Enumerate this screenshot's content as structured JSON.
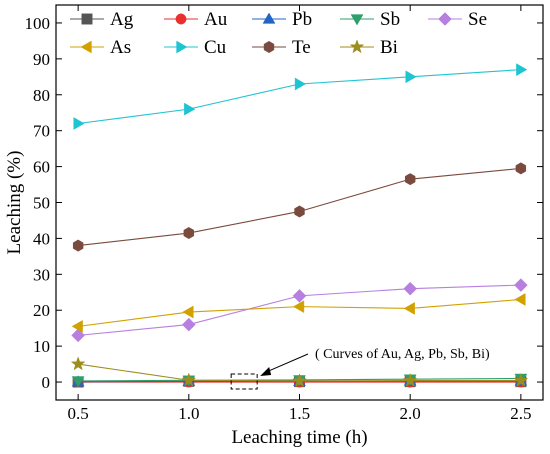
{
  "chart_data": {
    "type": "line",
    "xlabel": "Leaching time (h)",
    "ylabel": "Leaching (%)",
    "xlim": [
      0.4,
      2.6
    ],
    "ylim": [
      -5,
      105
    ],
    "xticks": [
      "0.5",
      "1.0",
      "1.5",
      "2.0",
      "2.5"
    ],
    "yticks": [
      "0",
      "10",
      "20",
      "30",
      "40",
      "50",
      "60",
      "70",
      "80",
      "90",
      "100"
    ],
    "x": [
      0.5,
      1.0,
      1.5,
      2.0,
      2.5
    ],
    "grid": false,
    "legend_position": "top",
    "series": [
      {
        "name": "Ag",
        "color": "#555555",
        "marker": "square",
        "values": [
          0,
          0.2,
          0.1,
          0.1,
          0.1
        ]
      },
      {
        "name": "Au",
        "color": "#e8302f",
        "marker": "circle",
        "values": [
          0,
          0,
          0,
          0,
          0
        ]
      },
      {
        "name": "Pb",
        "color": "#2166c4",
        "marker": "triangle-up",
        "values": [
          0.1,
          0.2,
          0.2,
          0.3,
          0.3
        ]
      },
      {
        "name": "Sb",
        "color": "#2f9e6a",
        "marker": "triangle-down",
        "values": [
          0.3,
          0.5,
          0.6,
          0.8,
          1.0
        ]
      },
      {
        "name": "Se",
        "color": "#b77fe0",
        "marker": "diamond",
        "values": [
          13,
          16,
          24,
          26,
          27
        ]
      },
      {
        "name": "As",
        "color": "#d2a100",
        "marker": "triangle-left",
        "values": [
          15.5,
          19.5,
          21,
          20.5,
          23
        ]
      },
      {
        "name": "Cu",
        "color": "#1fc4d2",
        "marker": "triangle-right",
        "values": [
          72,
          76,
          83,
          85,
          87
        ]
      },
      {
        "name": "Te",
        "color": "#7a4a3e",
        "marker": "hexagon",
        "values": [
          38,
          41.5,
          47.5,
          56.5,
          59.5
        ]
      },
      {
        "name": "Bi",
        "color": "#9c8d1e",
        "marker": "star",
        "values": [
          5,
          0.5,
          0.3,
          0.4,
          0.4
        ]
      }
    ],
    "annotation": {
      "text": "( Curves of Au, Ag, Pb, Sb, Bi)",
      "target_x": 1.25,
      "target_y": 0
    }
  }
}
